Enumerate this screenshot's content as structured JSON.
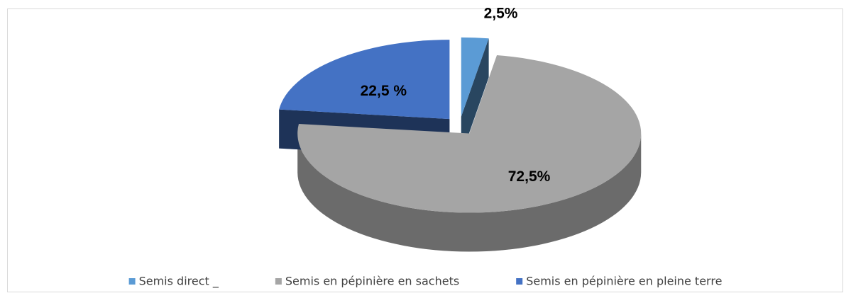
{
  "chart_data": {
    "type": "pie",
    "style": "3d-exploded",
    "categories": [
      "Semis direct _",
      "Semis en pépinière en sachets",
      "Semis en pépinière en pleine terre"
    ],
    "values": [
      2.5,
      72.5,
      22.5
    ],
    "value_labels": [
      "2,5%",
      "72,5%",
      "22,5 %"
    ],
    "colors": [
      "#5b9bd5",
      "#a5a5a5",
      "#4472c4"
    ],
    "legend": "bottom"
  }
}
